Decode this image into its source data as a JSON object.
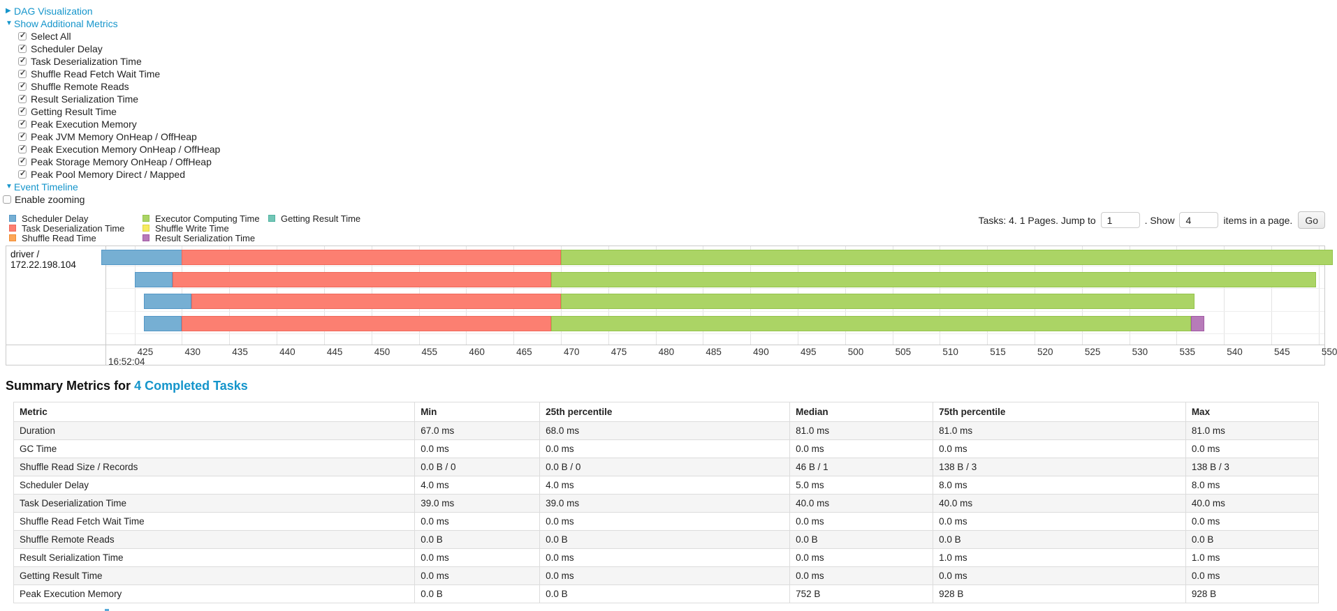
{
  "links": {
    "dag": "DAG Visualization",
    "metrics": "Show Additional Metrics",
    "timeline": "Event Timeline"
  },
  "metrics_panel": {
    "items": [
      "Select All",
      "Scheduler Delay",
      "Task Deserialization Time",
      "Shuffle Read Fetch Wait Time",
      "Shuffle Remote Reads",
      "Result Serialization Time",
      "Getting Result Time",
      "Peak Execution Memory",
      "Peak JVM Memory OnHeap / OffHeap",
      "Peak Execution Memory OnHeap / OffHeap",
      "Peak Storage Memory OnHeap / OffHeap",
      "Peak Pool Memory Direct / Mapped"
    ]
  },
  "enable_zooming_label": "Enable zooming",
  "legend": {
    "columns": [
      [
        {
          "label": "Scheduler Delay",
          "type": "scheduler_delay"
        },
        {
          "label": "Task Deserialization Time",
          "type": "task_deserialization"
        },
        {
          "label": "Shuffle Read Time",
          "type": "shuffle_read"
        }
      ],
      [
        {
          "label": "Executor Computing Time",
          "type": "executor_computing"
        },
        {
          "label": "Shuffle Write Time",
          "type": "shuffle_write"
        },
        {
          "label": "Result Serialization Time",
          "type": "result_serialization"
        }
      ],
      [
        {
          "label": "Getting Result Time",
          "type": "getting_result"
        }
      ]
    ]
  },
  "pagination": {
    "text_before": "Tasks: 4. 1 Pages. Jump to",
    "jump_value": "1",
    "text_mid": ". Show",
    "show_value": "4",
    "text_after": "items in a page.",
    "go_label": "Go"
  },
  "chart_data": {
    "type": "timeline",
    "group_label": "driver / 172.22.198.104",
    "axis": {
      "min": 422.0,
      "max": 550.6,
      "ticks": [
        425,
        430,
        435,
        440,
        445,
        450,
        455,
        460,
        465,
        470,
        475,
        480,
        485,
        490,
        495,
        500,
        505,
        510,
        515,
        520,
        525,
        530,
        535,
        540,
        545,
        550
      ],
      "major_label": "16:52:04",
      "unit": "ms within second 16:52:04"
    },
    "colors": {
      "scheduler_delay": {
        "fill": "#76AFD3",
        "border": "#5497C6"
      },
      "task_deserialization": {
        "fill": "#FC7F71",
        "border": "#F0685A"
      },
      "shuffle_read": {
        "fill": "#FCA758",
        "border": "#F28C33"
      },
      "executor_computing": {
        "fill": "#ABD465",
        "border": "#94C34C"
      },
      "shuffle_write": {
        "fill": "#F6EB61",
        "border": "#E0D53E"
      },
      "result_serialization": {
        "fill": "#B77BB9",
        "border": "#A159A4"
      },
      "getting_result": {
        "fill": "#72C6B6",
        "border": "#4FB2A0"
      }
    },
    "tasks": [
      {
        "segments": [
          {
            "type": "scheduler_delay",
            "start": 421.5,
            "end": 430.0
          },
          {
            "type": "task_deserialization",
            "start": 430.0,
            "end": 470.0
          },
          {
            "type": "executor_computing",
            "start": 470.0,
            "end": 551.5
          }
        ]
      },
      {
        "segments": [
          {
            "type": "scheduler_delay",
            "start": 425.0,
            "end": 429.0
          },
          {
            "type": "task_deserialization",
            "start": 429.0,
            "end": 469.0
          },
          {
            "type": "executor_computing",
            "start": 469.0,
            "end": 549.7
          }
        ]
      },
      {
        "segments": [
          {
            "type": "scheduler_delay",
            "start": 426.0,
            "end": 431.0
          },
          {
            "type": "task_deserialization",
            "start": 431.0,
            "end": 470.0
          },
          {
            "type": "executor_computing",
            "start": 470.0,
            "end": 536.9
          }
        ]
      },
      {
        "segments": [
          {
            "type": "scheduler_delay",
            "start": 426.0,
            "end": 430.0
          },
          {
            "type": "task_deserialization",
            "start": 430.0,
            "end": 469.0
          },
          {
            "type": "executor_computing",
            "start": 469.0,
            "end": 536.5
          },
          {
            "type": "result_serialization",
            "start": 536.5,
            "end": 537.9
          }
        ]
      }
    ]
  },
  "summary": {
    "title_prefix": "Summary Metrics for",
    "title_link": "4 Completed Tasks",
    "table": {
      "headers": [
        "Metric",
        "Min",
        "25th percentile",
        "Median",
        "75th percentile",
        "Max"
      ],
      "rows": [
        [
          "Duration",
          "67.0 ms",
          "68.0 ms",
          "81.0 ms",
          "81.0 ms",
          "81.0 ms"
        ],
        [
          "GC Time",
          "0.0 ms",
          "0.0 ms",
          "0.0 ms",
          "0.0 ms",
          "0.0 ms"
        ],
        [
          "Shuffle Read Size / Records",
          "0.0 B / 0",
          "0.0 B / 0",
          "46 B / 1",
          "138 B / 3",
          "138 B / 3"
        ],
        [
          "Scheduler Delay",
          "4.0 ms",
          "4.0 ms",
          "5.0 ms",
          "8.0 ms",
          "8.0 ms"
        ],
        [
          "Task Deserialization Time",
          "39.0 ms",
          "39.0 ms",
          "40.0 ms",
          "40.0 ms",
          "40.0 ms"
        ],
        [
          "Shuffle Read Fetch Wait Time",
          "0.0 ms",
          "0.0 ms",
          "0.0 ms",
          "0.0 ms",
          "0.0 ms"
        ],
        [
          "Shuffle Remote Reads",
          "0.0 B",
          "0.0 B",
          "0.0 B",
          "0.0 B",
          "0.0 B"
        ],
        [
          "Result Serialization Time",
          "0.0 ms",
          "0.0 ms",
          "0.0 ms",
          "1.0 ms",
          "1.0 ms"
        ],
        [
          "Getting Result Time",
          "0.0 ms",
          "0.0 ms",
          "0.0 ms",
          "0.0 ms",
          "0.0 ms"
        ],
        [
          "Peak Execution Memory",
          "0.0 B",
          "0.0 B",
          "752 B",
          "928 B",
          "928 B"
        ]
      ]
    }
  }
}
